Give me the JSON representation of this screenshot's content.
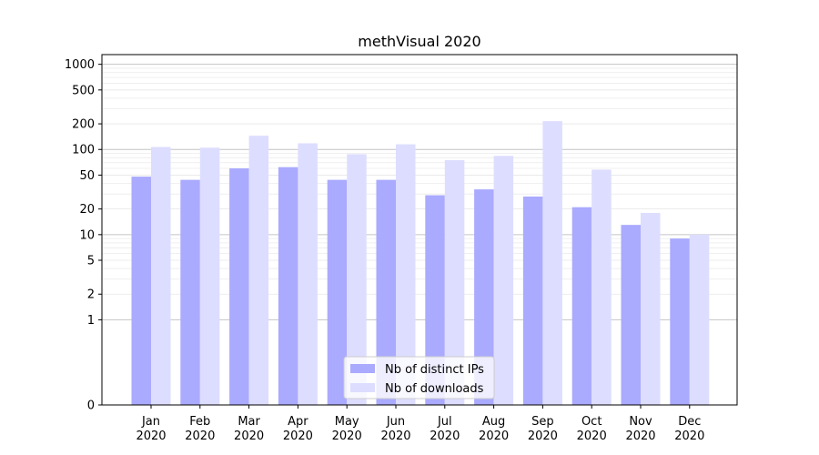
{
  "chart_data": {
    "type": "bar",
    "title": "methVisual 2020",
    "xlabel": "",
    "ylabel": "",
    "y_scale": "symlog",
    "ylim": [
      0,
      1300
    ],
    "y_ticks": [
      {
        "value": 0,
        "label": "0"
      },
      {
        "value": 1,
        "label": "1"
      },
      {
        "value": 2,
        "label": "2"
      },
      {
        "value": 5,
        "label": "5"
      },
      {
        "value": 10,
        "label": "10"
      },
      {
        "value": 20,
        "label": "20"
      },
      {
        "value": 50,
        "label": "50"
      },
      {
        "value": 100,
        "label": "100"
      },
      {
        "value": 200,
        "label": "200"
      },
      {
        "value": 500,
        "label": "500"
      },
      {
        "value": 1000,
        "label": "1000"
      }
    ],
    "grid": true,
    "legend_position": "bottom-center",
    "categories": [
      {
        "month": "Jan",
        "year": "2020"
      },
      {
        "month": "Feb",
        "year": "2020"
      },
      {
        "month": "Mar",
        "year": "2020"
      },
      {
        "month": "Apr",
        "year": "2020"
      },
      {
        "month": "May",
        "year": "2020"
      },
      {
        "month": "Jun",
        "year": "2020"
      },
      {
        "month": "Jul",
        "year": "2020"
      },
      {
        "month": "Aug",
        "year": "2020"
      },
      {
        "month": "Sep",
        "year": "2020"
      },
      {
        "month": "Oct",
        "year": "2020"
      },
      {
        "month": "Nov",
        "year": "2020"
      },
      {
        "month": "Dec",
        "year": "2020"
      }
    ],
    "series": [
      {
        "name": "Nb of distinct IPs",
        "color": "#aaaaff",
        "values": [
          48,
          44,
          60,
          62,
          44,
          44,
          29,
          34,
          28,
          21,
          13,
          9
        ]
      },
      {
        "name": "Nb of downloads",
        "color": "#ddddff",
        "values": [
          107,
          105,
          145,
          118,
          88,
          115,
          75,
          84,
          215,
          58,
          18,
          10
        ]
      }
    ]
  }
}
